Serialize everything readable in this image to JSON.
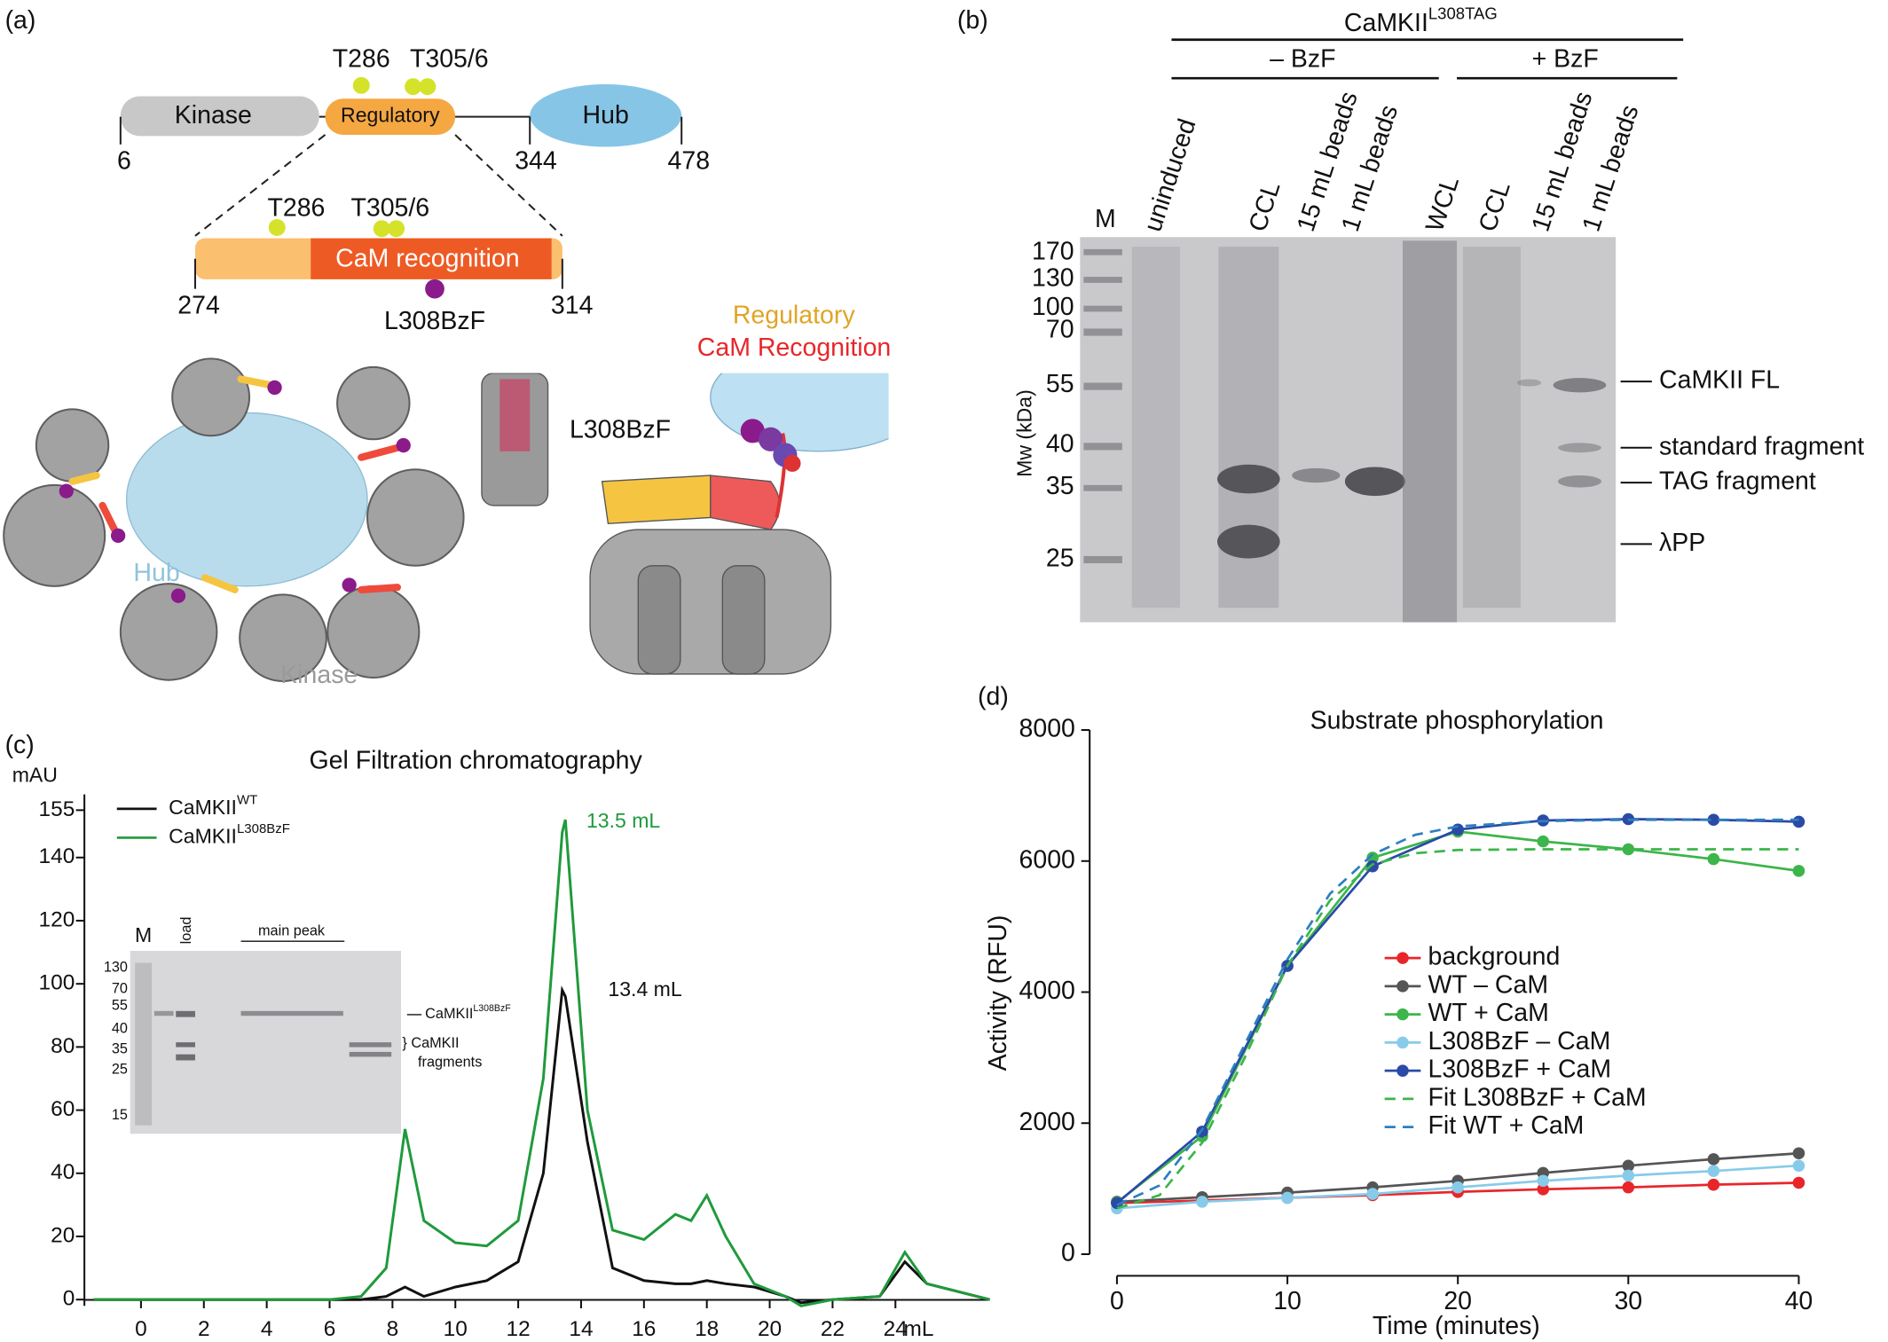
{
  "panel_a": {
    "label": "(a)",
    "domains": [
      "Kinase",
      "Regulatory",
      "Hub"
    ],
    "positions": [
      "6",
      "344",
      "478"
    ],
    "sites": [
      "T286",
      "T305/6"
    ],
    "zoom": {
      "name": "CaM recognition",
      "start": "274",
      "end": "314",
      "sites": [
        "T286",
        "T305/6"
      ],
      "mutation": "L308BzF"
    },
    "structure_labels": [
      "Hub",
      "Kinase"
    ],
    "legend": [
      "Regulatory",
      "CaM Recognition"
    ],
    "callout": "L308BzF"
  },
  "panel_b": {
    "label": "(b)",
    "construct": "CaMKII",
    "construct_sup": "L308TAG",
    "groups": [
      "– BzF",
      "+ BzF"
    ],
    "lanes": [
      "M",
      "uninduced",
      "CCL",
      "15 mL beads",
      "1 mL beads",
      "WCL",
      "CCL",
      "15 mL beads",
      "1 mL beads"
    ],
    "y_label": "Mw (kDa)",
    "markers": [
      "170",
      "130",
      "100",
      "70",
      "55",
      "40",
      "35",
      "25"
    ],
    "bands": [
      "CaMKII FL",
      "standard fragment",
      "TAG fragment",
      "λPP"
    ]
  },
  "chart_data": [
    {
      "type": "line",
      "panel_label": "(c)",
      "title": "Gel Filtration chromatography",
      "y_label": "mAU",
      "x_unit": "mL",
      "x": [
        -1.5,
        0,
        2,
        4,
        6,
        7,
        7.8,
        8.4,
        9,
        10,
        11,
        12,
        12.8,
        13.4,
        13.5,
        14.2,
        15,
        16,
        17,
        17.5,
        18,
        18.6,
        19.5,
        20.5,
        21,
        22,
        23.5,
        24.3,
        25,
        27
      ],
      "series": [
        {
          "name": "CaMKII",
          "name_sup": "WT",
          "color": "#111111",
          "values": [
            0,
            0,
            0,
            0,
            0,
            0,
            1,
            4,
            1,
            4,
            6,
            12,
            40,
            98,
            96,
            50,
            10,
            6,
            5,
            5,
            6,
            5,
            4,
            1,
            -1,
            0,
            1,
            12,
            5,
            0
          ]
        },
        {
          "name": "CaMKII",
          "name_sup": "L308BzF",
          "color": "#1f9a3c",
          "values": [
            0,
            0,
            0,
            0,
            0,
            1,
            10,
            54,
            25,
            18,
            17,
            25,
            70,
            148,
            152,
            60,
            22,
            19,
            27,
            25,
            33,
            20,
            5,
            1,
            -2,
            0,
            1,
            15,
            5,
            0
          ]
        }
      ],
      "annotations": [
        "13.5 mL",
        "13.4 mL"
      ],
      "inset": {
        "lanes": [
          "M",
          "load",
          "main peak"
        ],
        "markers": [
          "130",
          "70",
          "55",
          "40",
          "35",
          "25",
          "15"
        ],
        "band_name": "CaMKII",
        "band_sup": "L308BzF",
        "fragments": [
          "} CaMKII",
          "fragments"
        ]
      },
      "xlim": [
        -1.8,
        27
      ],
      "ylim": [
        -2,
        160
      ],
      "xticks": [
        0,
        2,
        4,
        6,
        8,
        10,
        12,
        14,
        16,
        18,
        20,
        22,
        24
      ],
      "yticks": [
        0,
        20,
        40,
        60,
        80,
        100,
        120,
        140,
        155
      ]
    },
    {
      "type": "line",
      "panel_label": "(d)",
      "title": "Substrate phosphorylation",
      "x_label": "Time (minutes)",
      "y_label": "Activity (RFU)",
      "x": [
        0,
        5,
        10,
        15,
        20,
        25,
        30,
        35,
        40
      ],
      "series": [
        {
          "name": "background",
          "color": "#e8262a",
          "markers": true,
          "values": [
            780,
            820,
            860,
            900,
            950,
            990,
            1020,
            1060,
            1090
          ]
        },
        {
          "name": "WT – CaM",
          "color": "#555555",
          "markers": true,
          "values": [
            800,
            870,
            940,
            1020,
            1120,
            1240,
            1350,
            1450,
            1540
          ]
        },
        {
          "name": "WT + CaM",
          "color": "#3cb54a",
          "markers": true,
          "values": [
            790,
            1800,
            4400,
            6050,
            6450,
            6300,
            6180,
            6030,
            5850
          ]
        },
        {
          "name": "L308BzF – CaM",
          "color": "#87cbea",
          "markers": true,
          "values": [
            700,
            800,
            860,
            920,
            1020,
            1120,
            1200,
            1270,
            1350
          ]
        },
        {
          "name": "L308BzF + CaM",
          "color": "#2a4aa6",
          "markers": true,
          "values": [
            780,
            1870,
            4400,
            5920,
            6480,
            6620,
            6640,
            6630,
            6600
          ]
        },
        {
          "name": "Fit L308BzF + CaM",
          "color": "#3cb54a",
          "dashed": true,
          "x": [
            0,
            2.5,
            5,
            7.5,
            10,
            12.5,
            15,
            17.5,
            20,
            25,
            30,
            40
          ],
          "values": [
            700,
            900,
            1700,
            3000,
            4400,
            5400,
            5950,
            6120,
            6170,
            6180,
            6180,
            6180
          ]
        },
        {
          "name": "Fit WT + CaM",
          "color": "#2d7fc1",
          "dashed": true,
          "x": [
            0,
            2.5,
            5,
            7.5,
            10,
            12.5,
            15,
            17.5,
            20,
            25,
            30,
            40
          ],
          "values": [
            750,
            1050,
            1900,
            3200,
            4500,
            5500,
            6100,
            6400,
            6530,
            6610,
            6630,
            6630
          ]
        }
      ],
      "xlim": [
        -1.6,
        40
      ],
      "ylim": [
        -330,
        8120
      ],
      "xticks": [
        0,
        10,
        20,
        30,
        40
      ],
      "yticks": [
        0,
        2000,
        4000,
        6000,
        8000
      ]
    }
  ]
}
